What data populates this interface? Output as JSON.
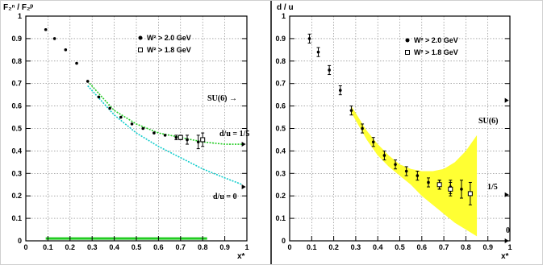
{
  "chart_data": [
    {
      "type": "scatter",
      "title": "",
      "ylabel": "F₂ⁿ / F₂ᵖ",
      "xlabel": "x*",
      "xlim": [
        0,
        1
      ],
      "ylim": [
        0,
        1
      ],
      "grid": true,
      "xticks": [
        "0",
        "0.1",
        "0.2",
        "0.3",
        "0.4",
        "0.5",
        "0.6",
        "0.7",
        "0.8",
        "0.9",
        "1"
      ],
      "yticks": [
        "0",
        "0.1",
        "0.2",
        "0.3",
        "0.4",
        "0.5",
        "0.6",
        "0.7",
        "0.8",
        "0.9",
        "1"
      ],
      "legend_position": "top-right",
      "legend": [
        "W² > 2.0 GeV",
        "W² > 1.8 GeV"
      ],
      "annotations": [
        "SU(6) →",
        "d/u = 1/5",
        "d/u = 0"
      ],
      "series": [
        {
          "name": "W² > 2.0 GeV",
          "marker": "filled-circle",
          "x": [
            0.09,
            0.13,
            0.18,
            0.23,
            0.28,
            0.33,
            0.38,
            0.43,
            0.48,
            0.53,
            0.58,
            0.63,
            0.68,
            0.73,
            0.78
          ],
          "y": [
            0.94,
            0.9,
            0.85,
            0.79,
            0.71,
            0.64,
            0.59,
            0.55,
            0.52,
            0.5,
            0.48,
            0.47,
            0.46,
            0.45,
            0.44
          ],
          "err": [
            0,
            0,
            0,
            0,
            0,
            0,
            0,
            0,
            0,
            0,
            0,
            0,
            0.01,
            0.02,
            0.03
          ]
        },
        {
          "name": "W² > 1.8 GeV",
          "marker": "open-square",
          "x": [
            0.7,
            0.8
          ],
          "y": [
            0.46,
            0.45
          ],
          "err": [
            0.01,
            0.03
          ]
        }
      ],
      "curves": [
        {
          "color": "#22cc22",
          "style": "dashed",
          "x": [
            0.28,
            0.4,
            0.5,
            0.6,
            0.7,
            0.8,
            0.9,
            0.98
          ],
          "y": [
            0.71,
            0.58,
            0.52,
            0.48,
            0.46,
            0.44,
            0.43,
            0.43
          ]
        },
        {
          "color": "#11cccc",
          "style": "dashed",
          "x": [
            0.28,
            0.4,
            0.5,
            0.6,
            0.7,
            0.8,
            0.9,
            0.98
          ],
          "y": [
            0.69,
            0.56,
            0.48,
            0.42,
            0.37,
            0.32,
            0.28,
            0.25
          ]
        }
      ],
      "band": {
        "color": "#22cc22",
        "x": [
          0.09,
          0.82
        ],
        "y": 0.005
      }
    },
    {
      "type": "scatter",
      "title": "",
      "ylabel": "d / u",
      "xlabel": "x*",
      "xlim": [
        0,
        1
      ],
      "ylim": [
        0,
        1
      ],
      "grid": true,
      "xticks": [
        "0",
        "0.1",
        "0.2",
        "0.3",
        "0.4",
        "0.5",
        "0.6",
        "0.7",
        "0.8",
        "0.9",
        "1"
      ],
      "yticks": [
        "0",
        "0.1",
        "0.2",
        "0.3",
        "0.4",
        "0.5",
        "0.6",
        "0.7",
        "0.8",
        "0.9",
        "1"
      ],
      "legend_position": "top-right",
      "legend": [
        "W² > 2.0 GeV",
        "W² > 1.8 GeV"
      ],
      "annotations": [
        "SU(6)",
        "1/5",
        "0"
      ],
      "series": [
        {
          "name": "W² > 2.0 GeV",
          "marker": "filled-circle",
          "x": [
            0.09,
            0.13,
            0.18,
            0.23,
            0.28,
            0.33,
            0.38,
            0.43,
            0.48,
            0.53,
            0.58,
            0.63,
            0.68,
            0.73,
            0.78
          ],
          "y": [
            0.9,
            0.84,
            0.76,
            0.67,
            0.58,
            0.5,
            0.44,
            0.38,
            0.34,
            0.31,
            0.29,
            0.26,
            0.25,
            0.24,
            0.23
          ],
          "err": [
            0.02,
            0.02,
            0.02,
            0.02,
            0.02,
            0.02,
            0.02,
            0.02,
            0.02,
            0.02,
            0.02,
            0.02,
            0.02,
            0.03,
            0.04
          ]
        },
        {
          "name": "W² > 1.8 GeV",
          "marker": "open-square",
          "x": [
            0.68,
            0.73,
            0.82
          ],
          "y": [
            0.25,
            0.23,
            0.21
          ],
          "err": [
            0.02,
            0.03,
            0.05
          ]
        }
      ],
      "band": {
        "color": "#ffff33",
        "x": [
          0.28,
          0.35,
          0.4,
          0.45,
          0.5,
          0.55,
          0.6,
          0.65,
          0.7,
          0.75,
          0.8,
          0.85
        ],
        "upper": [
          0.6,
          0.49,
          0.43,
          0.38,
          0.34,
          0.32,
          0.31,
          0.31,
          0.32,
          0.35,
          0.4,
          0.47
        ],
        "lower": [
          0.57,
          0.45,
          0.38,
          0.33,
          0.29,
          0.25,
          0.2,
          0.16,
          0.12,
          0.08,
          0.05,
          0.02
        ]
      }
    }
  ]
}
